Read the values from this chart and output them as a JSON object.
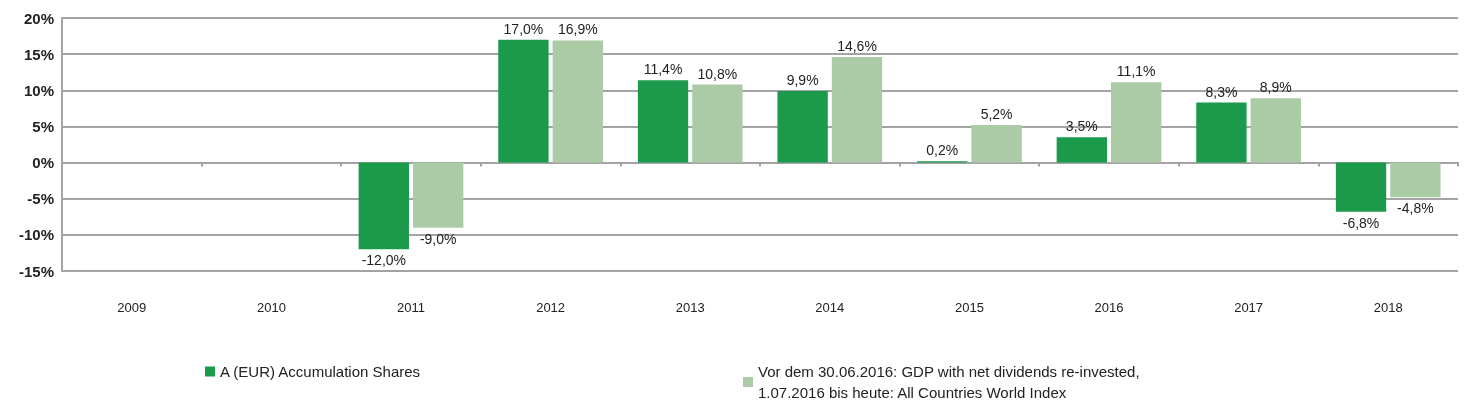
{
  "chart_data": {
    "type": "bar",
    "categories": [
      "2009",
      "2010",
      "2011",
      "2012",
      "2013",
      "2014",
      "2015",
      "2016",
      "2017",
      "2018"
    ],
    "series": [
      {
        "name": "A (EUR) Accumulation Shares",
        "color": "#1a9a4a",
        "values": [
          null,
          null,
          -12.0,
          17.0,
          11.4,
          9.9,
          0.2,
          3.5,
          8.3,
          -6.8
        ],
        "value_labels": [
          null,
          null,
          "-12,0%",
          "17,0%",
          "11,4%",
          "9,9%",
          "0,2%",
          "3,5%",
          "8,3%",
          "-6,8%"
        ]
      },
      {
        "name": "Vor dem 30.06.2016: GDP with net dividends re-invested, 1.07.2016 bis heute: All Countries World Index",
        "color": "#abcba6",
        "values": [
          null,
          null,
          -9.0,
          16.9,
          10.8,
          14.6,
          5.2,
          11.1,
          8.9,
          -4.8
        ],
        "value_labels": [
          null,
          null,
          "-9,0%",
          "16,9%",
          "10,8%",
          "14,6%",
          "5,2%",
          "11,1%",
          "8,9%",
          "-4,8%"
        ]
      }
    ],
    "ylim": [
      -15,
      20
    ],
    "yticks": [
      {
        "value": -15,
        "label": "-15%"
      },
      {
        "value": -10,
        "label": "-10%"
      },
      {
        "value": -5,
        "label": "-5%"
      },
      {
        "value": 0,
        "label": "0%"
      },
      {
        "value": 5,
        "label": "5%"
      },
      {
        "value": 10,
        "label": "10%"
      },
      {
        "value": 15,
        "label": "15%"
      },
      {
        "value": 20,
        "label": "20%"
      }
    ],
    "grid": "y",
    "legend": "bottom"
  }
}
